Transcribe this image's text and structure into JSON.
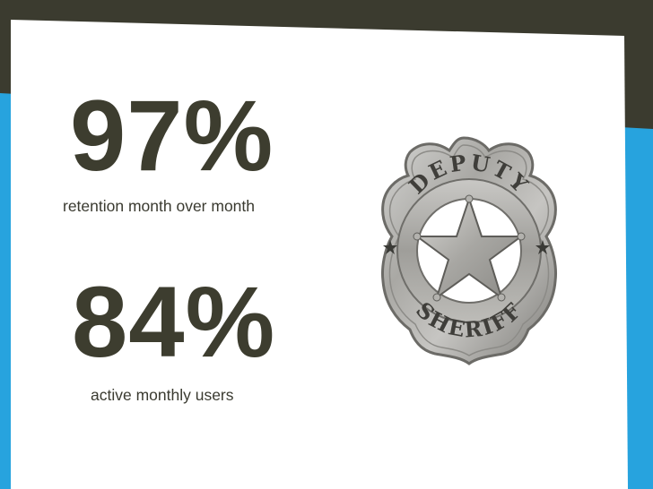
{
  "stats": [
    {
      "value": "97%",
      "caption": "retention month over month"
    },
    {
      "value": "84%",
      "caption": "active monthly users"
    }
  ],
  "badge": {
    "top_text": "DEPUTY",
    "bottom_text": "SHERIFF"
  },
  "colors": {
    "background_blue": "#27a3de",
    "dark_band": "#3b3b2f",
    "slide_white": "#ffffff",
    "stat_text": "#3d3d2f"
  }
}
